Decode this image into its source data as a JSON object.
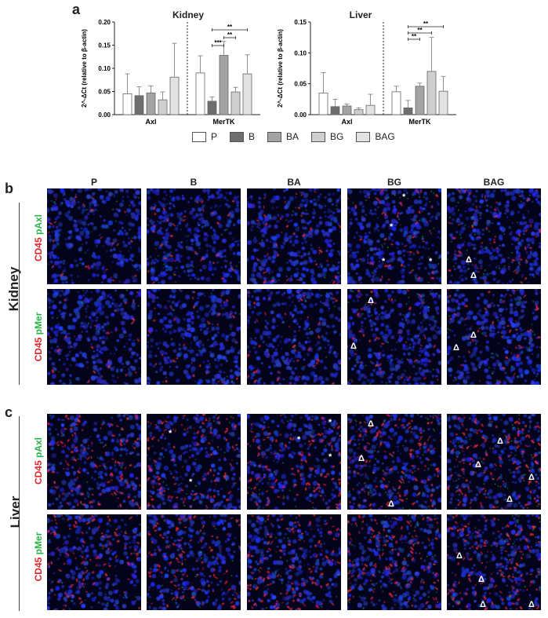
{
  "panel_labels": {
    "a": "a",
    "b": "b",
    "c": "c"
  },
  "chart_data": [
    {
      "type": "bar",
      "title": "Kidney",
      "ylabel": "2^-ΔCt (relative to β-actin)",
      "ylim": [
        0,
        0.2
      ],
      "yticks": [
        "0.00",
        "0.05",
        "0.10",
        "0.15",
        "0.20"
      ],
      "groups": [
        "Axl",
        "MerTK"
      ],
      "series": [
        {
          "name": "P",
          "color": "#ffffff",
          "values": [
            0.045,
            0.09
          ],
          "errors": [
            0.043,
            0.037
          ]
        },
        {
          "name": "B",
          "color": "#6e6e6e",
          "values": [
            0.041,
            0.029
          ],
          "errors": [
            0.019,
            0.009
          ]
        },
        {
          "name": "BA",
          "color": "#a3a3a3",
          "values": [
            0.047,
            0.128
          ],
          "errors": [
            0.015,
            0.03
          ]
        },
        {
          "name": "BG",
          "color": "#cfcfcf",
          "values": [
            0.032,
            0.049
          ],
          "errors": [
            0.017,
            0.01
          ]
        },
        {
          "name": "BAG",
          "color": "#e2e2e2",
          "values": [
            0.081,
            0.088
          ],
          "errors": [
            0.073,
            0.041
          ]
        }
      ],
      "significance": [
        {
          "from": "B",
          "to": "BA",
          "group": "MerTK",
          "label": "***"
        },
        {
          "from": "BA",
          "to": "BG",
          "group": "MerTK",
          "label": "**"
        },
        {
          "from": "B",
          "to": "BAG",
          "group": "MerTK",
          "label": "**"
        }
      ]
    },
    {
      "type": "bar",
      "title": "Liver",
      "ylabel": "2^-ΔCt (relative to β-actin)",
      "ylim": [
        0,
        0.15
      ],
      "yticks": [
        "0.00",
        "0.05",
        "0.10",
        "0.15"
      ],
      "groups": [
        "Axl",
        "MerTK"
      ],
      "series": [
        {
          "name": "P",
          "color": "#ffffff",
          "values": [
            0.035,
            0.037
          ],
          "errors": [
            0.033,
            0.009
          ]
        },
        {
          "name": "B",
          "color": "#6e6e6e",
          "values": [
            0.013,
            0.011
          ],
          "errors": [
            0.012,
            0.012
          ]
        },
        {
          "name": "BA",
          "color": "#a3a3a3",
          "values": [
            0.014,
            0.046
          ],
          "errors": [
            0.003,
            0.005
          ]
        },
        {
          "name": "BG",
          "color": "#cfcfcf",
          "values": [
            0.008,
            0.07
          ],
          "errors": [
            0.003,
            0.055
          ]
        },
        {
          "name": "BAG",
          "color": "#e2e2e2",
          "values": [
            0.015,
            0.038
          ],
          "errors": [
            0.018,
            0.024
          ]
        }
      ],
      "significance": [
        {
          "from": "B",
          "to": "BA",
          "group": "MerTK",
          "label": "**"
        },
        {
          "from": "B",
          "to": "BG",
          "group": "MerTK",
          "label": "**"
        },
        {
          "from": "B",
          "to": "BAG",
          "group": "MerTK",
          "label": "**"
        }
      ]
    }
  ],
  "legend": [
    {
      "label": "P",
      "color": "#ffffff"
    },
    {
      "label": "B",
      "color": "#6e6e6e"
    },
    {
      "label": "BA",
      "color": "#a3a3a3"
    },
    {
      "label": "BG",
      "color": "#cfcfcf"
    },
    {
      "label": "BAG",
      "color": "#e2e2e2"
    }
  ],
  "columns": [
    "P",
    "B",
    "BA",
    "BG",
    "BAG"
  ],
  "organs": {
    "kidney": "Kidney",
    "liver": "Liver"
  },
  "stains": {
    "cd45": "CD45",
    "paxl": "pAxl",
    "pmer": "pMer"
  }
}
